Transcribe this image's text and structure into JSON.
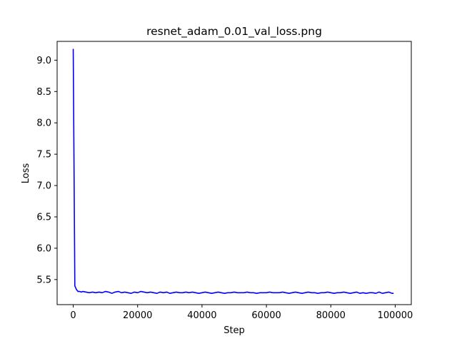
{
  "chart_data": {
    "type": "line",
    "title": "resnet_adam_0.01_val_loss.png",
    "xlabel": "Step",
    "ylabel": "Loss",
    "xlim": [
      -5000,
      105000
    ],
    "ylim": [
      5.1,
      9.3
    ],
    "xticks": [
      0,
      20000,
      40000,
      60000,
      80000,
      100000
    ],
    "xtick_labels": [
      "0",
      "20000",
      "40000",
      "60000",
      "80000",
      "100000"
    ],
    "yticks": [
      5.5,
      6.0,
      6.5,
      7.0,
      7.5,
      8.0,
      8.5,
      9.0
    ],
    "ytick_labels": [
      "5.5",
      "6.0",
      "6.5",
      "7.0",
      "7.5",
      "8.0",
      "8.5",
      "9.0"
    ],
    "grid": false,
    "series": [
      {
        "color": "#0000ff",
        "x": [
          0,
          500,
          1000,
          1500,
          2000,
          2500,
          3000,
          4000,
          5000,
          6000,
          7000,
          8000,
          9000,
          10000,
          11000,
          12000,
          13000,
          14000,
          15000,
          16000,
          17000,
          18000,
          19000,
          20000,
          21000,
          22000,
          23000,
          24000,
          25000,
          26000,
          27000,
          28000,
          29000,
          30000,
          31000,
          32000,
          33000,
          34000,
          35000,
          36000,
          37000,
          38000,
          39000,
          40000,
          41000,
          42000,
          43000,
          44000,
          45000,
          46000,
          47000,
          48000,
          49000,
          50000,
          51000,
          52000,
          53000,
          54000,
          55000,
          56000,
          57000,
          58000,
          59000,
          60000,
          61000,
          62000,
          63000,
          64000,
          65000,
          66000,
          67000,
          68000,
          69000,
          70000,
          71000,
          72000,
          73000,
          74000,
          75000,
          76000,
          77000,
          78000,
          79000,
          80000,
          81000,
          82000,
          83000,
          84000,
          85000,
          86000,
          87000,
          88000,
          89000,
          90000,
          91000,
          92000,
          93000,
          94000,
          95000,
          96000,
          97000,
          98000,
          99000,
          99500
        ],
        "y": [
          9.18,
          5.4,
          5.34,
          5.31,
          5.31,
          5.3,
          5.31,
          5.3,
          5.29,
          5.3,
          5.29,
          5.3,
          5.29,
          5.31,
          5.3,
          5.28,
          5.3,
          5.31,
          5.29,
          5.3,
          5.29,
          5.28,
          5.3,
          5.29,
          5.31,
          5.3,
          5.29,
          5.3,
          5.29,
          5.28,
          5.3,
          5.29,
          5.3,
          5.28,
          5.29,
          5.3,
          5.29,
          5.29,
          5.3,
          5.29,
          5.3,
          5.29,
          5.28,
          5.29,
          5.3,
          5.29,
          5.28,
          5.29,
          5.3,
          5.29,
          5.28,
          5.29,
          5.29,
          5.3,
          5.29,
          5.29,
          5.29,
          5.3,
          5.29,
          5.29,
          5.28,
          5.29,
          5.29,
          5.29,
          5.3,
          5.29,
          5.29,
          5.29,
          5.3,
          5.29,
          5.28,
          5.29,
          5.3,
          5.29,
          5.28,
          5.29,
          5.3,
          5.29,
          5.29,
          5.28,
          5.29,
          5.29,
          5.3,
          5.29,
          5.28,
          5.29,
          5.29,
          5.3,
          5.29,
          5.28,
          5.29,
          5.3,
          5.28,
          5.29,
          5.28,
          5.29,
          5.29,
          5.28,
          5.3,
          5.28,
          5.29,
          5.3,
          5.28,
          5.28
        ]
      }
    ]
  }
}
